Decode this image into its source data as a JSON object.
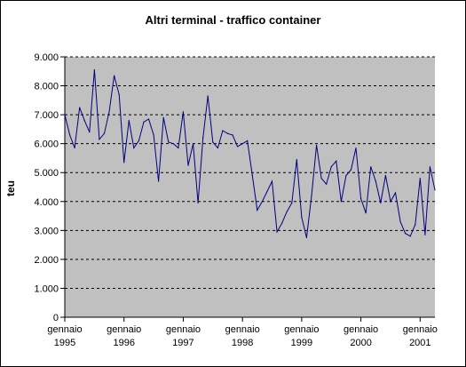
{
  "chart_data": {
    "type": "line",
    "title": "Altri terminal - traffico container",
    "ylabel": "teu",
    "xlabel": "",
    "ylim": [
      0,
      9000
    ],
    "yticks": [
      0,
      1000,
      2000,
      3000,
      4000,
      5000,
      6000,
      7000,
      8000,
      9000
    ],
    "ytick_labels": [
      "0",
      "1.000",
      "2.000",
      "3.000",
      "4.000",
      "5.000",
      "6.000",
      "7.000",
      "8.000",
      "9.000"
    ],
    "xtick_labels": [
      {
        "month": "gennaio",
        "year": "1995"
      },
      {
        "month": "gennaio",
        "year": "1996"
      },
      {
        "month": "gennaio",
        "year": "1997"
      },
      {
        "month": "gennaio",
        "year": "1998"
      },
      {
        "month": "gennaio",
        "year": "1999"
      },
      {
        "month": "gennaio",
        "year": "2000"
      },
      {
        "month": "gennaio",
        "year": "2001"
      }
    ],
    "grid": "horizontal dashed",
    "background_color": "#c0c0c0",
    "line_color": "#000080",
    "series": [
      {
        "x_start": "1995-01",
        "frequency": "monthly",
        "values": [
          7000,
          6300,
          5850,
          7250,
          6800,
          6400,
          8550,
          6150,
          6350,
          7100,
          8350,
          7700,
          5350,
          6800,
          5850,
          6100,
          6750,
          6850,
          6300,
          4700,
          6900,
          6050,
          6000,
          5850,
          7100,
          5250,
          6000,
          3950,
          6200,
          7650,
          6050,
          5850,
          6450,
          6350,
          6300,
          5900,
          6000,
          6100,
          4900,
          3700,
          4000,
          4350,
          4700,
          2950,
          3250,
          3650,
          3950,
          5450,
          3450,
          2750,
          4200,
          5950,
          4800,
          4600,
          5200,
          5400,
          4000,
          4900,
          5100,
          5850,
          4100,
          3600,
          5200,
          4700,
          3950,
          4900,
          4000,
          4300,
          3300,
          2900,
          2800,
          3200,
          4800,
          2850,
          5200,
          4400
        ]
      }
    ]
  }
}
